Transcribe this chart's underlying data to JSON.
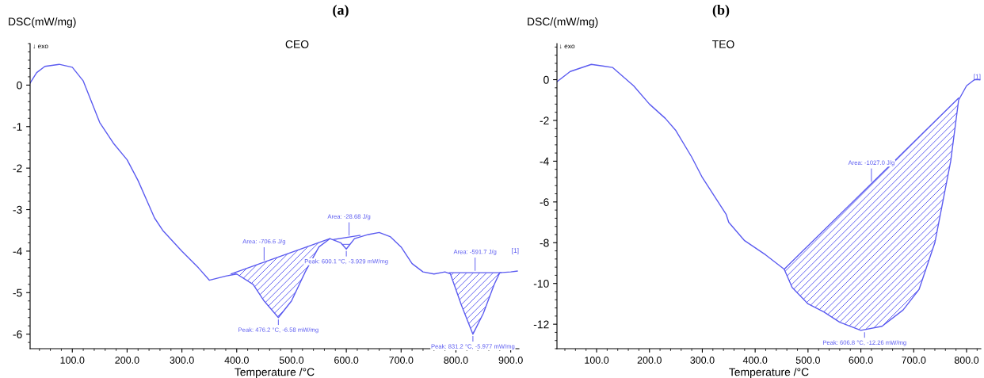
{
  "chart_data": [
    {
      "type": "line",
      "title": "(a)",
      "subtitle": "CEO",
      "xlabel": "Temperature /°C",
      "ylabel": "DSC(mW/mg)",
      "xlim": [
        23,
        915
      ],
      "ylim": [
        -6.35,
        1.0
      ],
      "xticks": [
        {
          "value": 100,
          "label": "100.0"
        },
        {
          "value": 200,
          "label": "200.0"
        },
        {
          "value": 300,
          "label": "300.0"
        },
        {
          "value": 400,
          "label": "400.0"
        },
        {
          "value": 500,
          "label": "500.0"
        },
        {
          "value": 600,
          "label": "600.0"
        },
        {
          "value": 700,
          "label": "700.0"
        },
        {
          "value": 800,
          "label": "800.0"
        },
        {
          "value": 900,
          "label": "900.0"
        }
      ],
      "yticks": [
        -6,
        -5,
        -4,
        -3,
        -2,
        -1,
        0
      ],
      "grid": false,
      "legend": false,
      "series": [
        {
          "color": "#5b5bf0",
          "x": [
            23,
            35,
            50,
            76,
            100,
            120,
            150,
            175,
            200,
            220,
            240,
            250,
            265,
            300,
            330,
            350,
            380,
            400,
            430,
            450,
            476,
            500,
            525,
            550,
            570,
            590,
            600,
            615,
            640,
            660,
            680,
            700,
            720,
            740,
            760,
            780,
            790,
            810,
            831,
            850,
            870,
            880,
            900,
            912
          ],
          "values": [
            0.05,
            0.3,
            0.45,
            0.5,
            0.43,
            0.1,
            -0.9,
            -1.4,
            -1.8,
            -2.3,
            -2.9,
            -3.2,
            -3.5,
            -4.0,
            -4.4,
            -4.7,
            -4.6,
            -4.55,
            -4.8,
            -5.2,
            -5.6,
            -5.2,
            -4.5,
            -3.9,
            -3.7,
            -3.8,
            -3.95,
            -3.7,
            -3.6,
            -3.55,
            -3.65,
            -3.9,
            -4.3,
            -4.5,
            -4.55,
            -4.5,
            -4.55,
            -5.3,
            -6.0,
            -5.5,
            -4.8,
            -4.52,
            -4.5,
            -4.48
          ]
        },
        {
          "color": "#5b5bf0",
          "x": [
            390,
            570
          ],
          "values": [
            -4.55,
            -3.7
          ]
        },
        {
          "color": "#5b5bf0",
          "x": [
            577,
            625
          ],
          "values": [
            -3.72,
            -3.62
          ]
        },
        {
          "color": "#5b5bf0",
          "x": [
            788,
            882
          ],
          "values": [
            -4.52,
            -4.52
          ]
        }
      ],
      "annotations": [
        {
          "text": "Area: -706.6 J/g",
          "x": 450,
          "y": -4.27
        },
        {
          "text": "Peak: 476.2 °C, -6.58 mW/mg",
          "x": 476,
          "y": -5.6
        },
        {
          "text": "Area: -28.68 J/g",
          "x": 605,
          "y": -3.67
        },
        {
          "text": "Peak: 600.1 °C, -3.929 mW/mg",
          "x": 600,
          "y": -3.95
        },
        {
          "text": "Area: -591.7 J/g",
          "x": 835,
          "y": -4.52
        },
        {
          "text": "Peak: 831.2 °C, -5.977 mW/mg",
          "x": 831,
          "y": -6.0
        },
        "↓ exo",
        "[1]"
      ]
    },
    {
      "type": "line",
      "title": "(b)",
      "subtitle": "TEO",
      "xlabel": "Temperature /°C",
      "ylabel": "DSC/(mW/mg)",
      "xlim": [
        25,
        827
      ],
      "ylim": [
        -13.2,
        1.77
      ],
      "xticks": [
        {
          "value": 100,
          "label": "100.0"
        },
        {
          "value": 200,
          "label": "200.0"
        },
        {
          "value": 300,
          "label": "300.0"
        },
        {
          "value": 400,
          "label": "400.0"
        },
        {
          "value": 500,
          "label": "500.0"
        },
        {
          "value": 600,
          "label": "600.0"
        },
        {
          "value": 700,
          "label": "700.0"
        },
        {
          "value": 800,
          "label": "800.0"
        }
      ],
      "yticks": [
        -12,
        -10,
        -8,
        -6,
        -4,
        -2,
        0
      ],
      "grid": false,
      "legend": false,
      "series": [
        {
          "color": "#5b5bf0",
          "x": [
            25,
            50,
            90,
            130,
            170,
            200,
            230,
            250,
            280,
            300,
            330,
            345,
            350,
            380,
            420,
            455,
            470,
            500,
            530,
            560,
            600,
            640,
            680,
            710,
            740,
            770,
            785,
            800,
            815,
            825
          ],
          "values": [
            -0.1,
            0.4,
            0.75,
            0.6,
            -0.3,
            -1.2,
            -1.9,
            -2.5,
            -3.8,
            -4.8,
            -6.0,
            -6.6,
            -7.0,
            -7.9,
            -8.6,
            -9.3,
            -10.2,
            -11.0,
            -11.4,
            -11.9,
            -12.3,
            -12.1,
            -11.3,
            -10.3,
            -8.0,
            -4.0,
            -1.0,
            -0.3,
            0.0,
            0.0
          ]
        },
        {
          "color": "#5b5bf0",
          "x": [
            455,
            785
          ],
          "values": [
            -9.3,
            -0.9
          ]
        }
      ],
      "annotations": [
        {
          "text": "Area: -1027.0 J/g",
          "x": 620,
          "y": -5.1
        },
        {
          "text": "Peak: 606.8 °C, -12.26 mW/mg",
          "x": 607,
          "y": -12.3
        },
        "↓ exo",
        "[1]"
      ]
    }
  ]
}
